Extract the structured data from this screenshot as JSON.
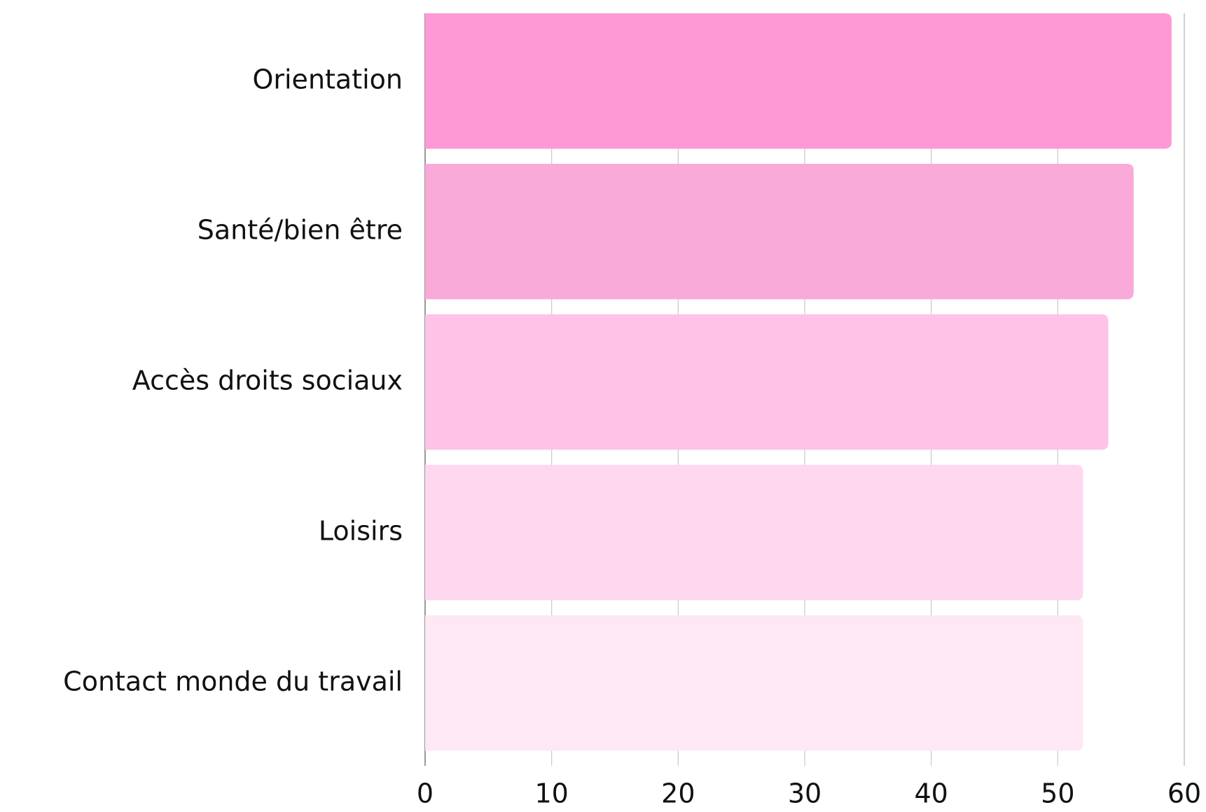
{
  "chart_data": {
    "type": "hbar",
    "categories": [
      "Orientation",
      "Santé/bien être",
      "Accès droits sociaux",
      "Loisirs",
      "Contact monde du travail"
    ],
    "values": [
      59,
      56,
      54,
      52,
      52
    ],
    "colors": [
      "#ff99d6",
      "#f9aad9",
      "#fec3e6",
      "#fed8ef",
      "#fee8f4"
    ],
    "xlim": [
      0,
      60
    ],
    "xticks": [
      0,
      10,
      20,
      30,
      40,
      50,
      60
    ],
    "grid": true
  }
}
